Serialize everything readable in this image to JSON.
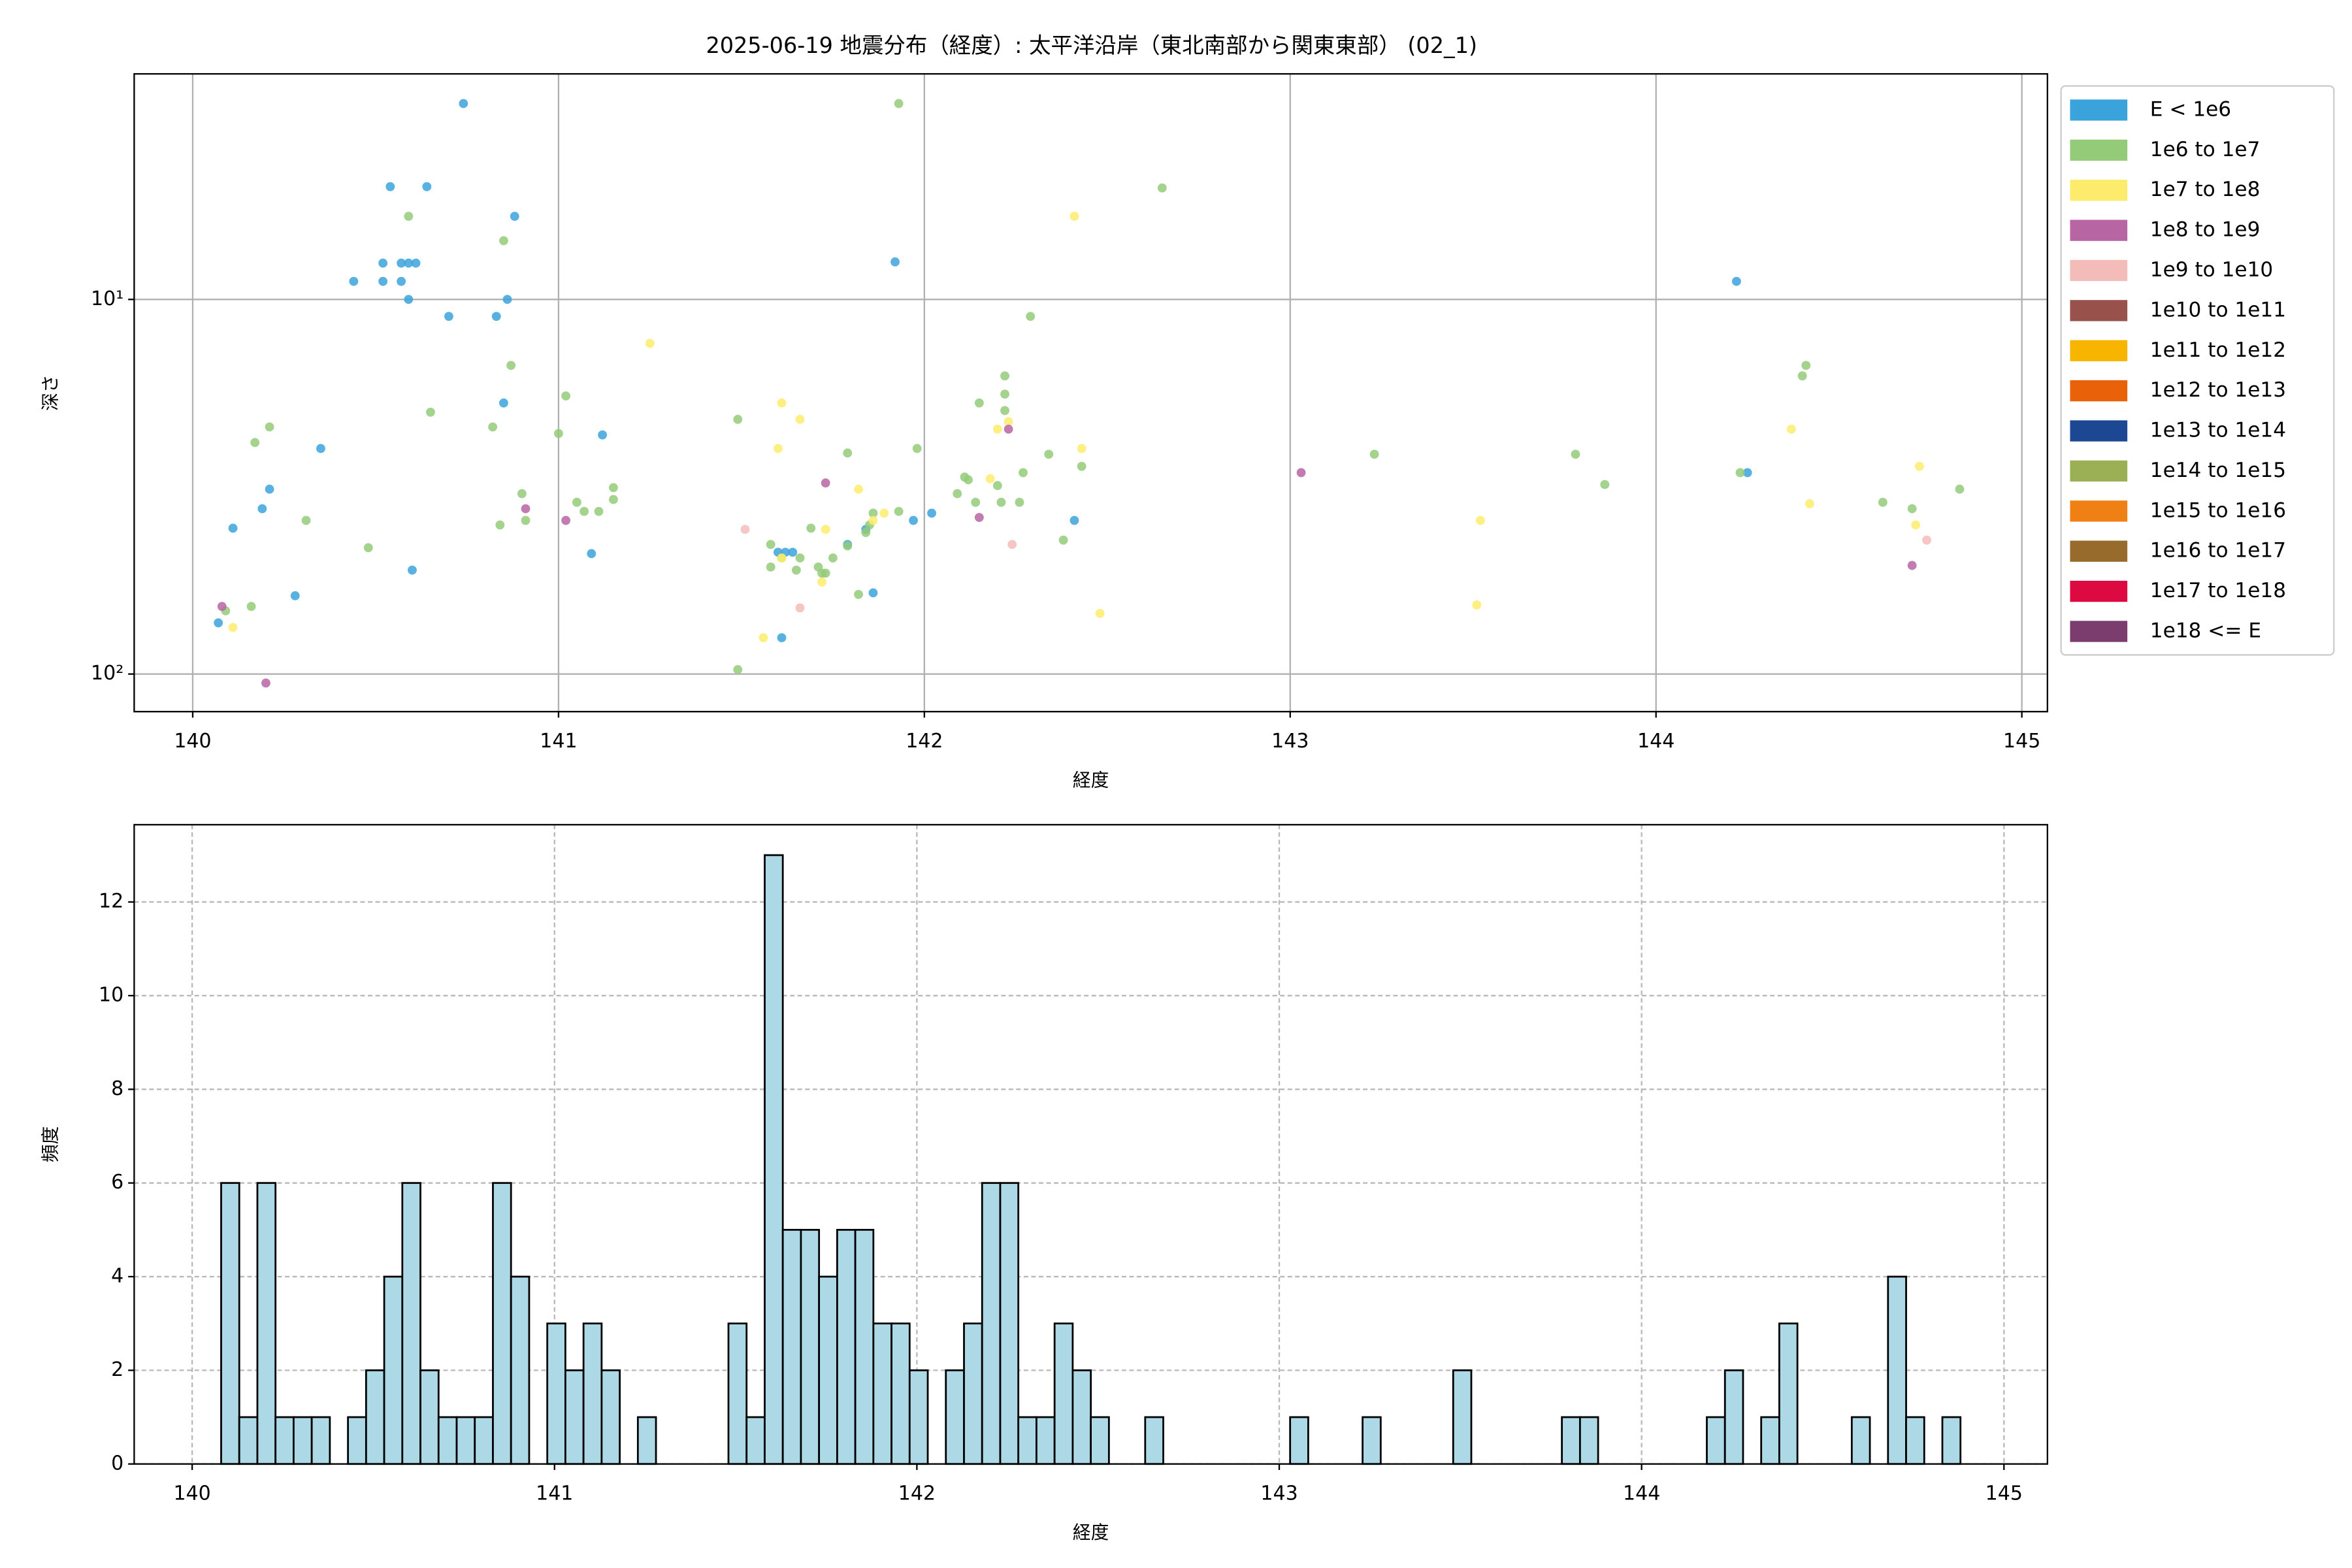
{
  "chart_data": [
    {
      "type": "scatter",
      "title": "2025-06-19 地震分布（経度）: 太平洋沿岸（東北南部から関東東部） (02_1)",
      "x_label": "経度",
      "y_label": "深さ",
      "xlim": [
        139.84,
        145.07
      ],
      "ylim": [
        126,
        2.5
      ],
      "yscale": "log",
      "xticks": [
        140,
        141,
        142,
        143,
        144,
        145
      ],
      "yticks": [
        {
          "value": 10,
          "label": "10¹"
        },
        {
          "value": 100,
          "label": "10²"
        }
      ],
      "grid": true,
      "grid_style": "solid",
      "legend": "outside-right",
      "series": [
        {
          "name": "E < 1e6",
          "color": "#3ba3dc",
          "x": [
            140.07,
            140.11,
            140.19,
            140.21,
            140.28,
            140.35,
            140.44,
            140.52,
            140.54,
            140.57,
            140.52,
            140.57,
            140.59,
            140.61,
            140.59,
            140.6,
            140.64,
            140.7,
            140.74,
            140.83,
            140.85,
            140.86,
            140.88,
            141.09,
            141.12,
            141.61,
            141.6,
            141.62,
            141.64,
            141.79,
            141.84,
            141.86,
            141.92,
            141.97,
            142.02,
            142.41,
            144.22,
            144.25
          ],
          "values": [
            73,
            40.8,
            36.2,
            32.1,
            61.8,
            25,
            8.95,
            8.95,
            5,
            8.95,
            8,
            8,
            8,
            8,
            10,
            52.8,
            5,
            11.1,
            3,
            11.1,
            18.9,
            10,
            6,
            47.7,
            23,
            80,
            47.3,
            47.3,
            47.3,
            45.1,
            41.1,
            60.7,
            7.94,
            38.9,
            37.2,
            38.9,
            8.95,
            29
          ]
        },
        {
          "name": "1e6 to 1e7",
          "color": "#93cb78",
          "x": [
            140.09,
            140.16,
            140.17,
            140.21,
            140.31,
            140.48,
            140.59,
            140.65,
            140.82,
            140.85,
            140.84,
            140.87,
            140.9,
            140.91,
            141.0,
            141.02,
            141.05,
            141.07,
            141.11,
            141.15,
            141.15,
            141.49,
            141.49,
            141.58,
            141.58,
            141.61,
            141.65,
            141.66,
            141.69,
            141.72,
            141.71,
            141.73,
            141.75,
            141.79,
            141.79,
            141.82,
            141.84,
            141.85,
            141.86,
            141.93,
            141.93,
            141.98,
            142.09,
            142.11,
            142.12,
            142.14,
            142.15,
            142.2,
            142.21,
            142.22,
            142.22,
            142.22,
            142.26,
            142.27,
            142.29,
            142.34,
            142.38,
            142.43,
            142.65,
            143.23,
            143.78,
            143.86,
            144.23,
            144.4,
            144.41,
            144.62,
            144.7,
            144.83
          ],
          "values": [
            67.8,
            66,
            24.1,
            21.9,
            38.9,
            46,
            6,
            20,
            21.9,
            6.97,
            40,
            15,
            33,
            38.9,
            22.8,
            18.1,
            34.8,
            36.8,
            36.8,
            34.2,
            31.8,
            20.9,
            97.3,
            45.1,
            51.8,
            49,
            52.8,
            49,
            40.8,
            53.8,
            51.8,
            53.8,
            49,
            25.7,
            45.5,
            61.3,
            41.9,
            40,
            37.2,
            3,
            36.8,
            25,
            33,
            29.8,
            30.3,
            34.8,
            18.9,
            31.4,
            34.8,
            19.8,
            17.9,
            16,
            34.8,
            29,
            11.1,
            25.9,
            43.9,
            27.9,
            5.04,
            25.9,
            25.9,
            31.2,
            29,
            16,
            15,
            34.8,
            36.2,
            32.1
          ]
        },
        {
          "name": "1e7 to 1e8",
          "color": "#fdec6b",
          "x": [
            140.11,
            141.25,
            141.56,
            141.6,
            141.61,
            141.66,
            141.61,
            141.72,
            141.73,
            141.82,
            141.86,
            141.89,
            142.18,
            142.2,
            142.23,
            142.41,
            142.43,
            142.48,
            143.51,
            143.52,
            144.37,
            144.42,
            144.71,
            144.72
          ],
          "values": [
            75.1,
            13.1,
            80,
            25,
            18.9,
            20.9,
            49,
            56.8,
            41.1,
            32.1,
            38.9,
            37.2,
            30.1,
            22.2,
            21.2,
            6,
            25,
            68.9,
            65.4,
            38.9,
            22.2,
            35.1,
            40,
            27.9
          ]
        },
        {
          "name": "1e8 to 1e9",
          "color": "#b865a3",
          "x": [
            140.08,
            140.2,
            140.91,
            141.02,
            141.73,
            142.15,
            142.23,
            143.03,
            144.7
          ],
          "values": [
            66,
            105.7,
            36.2,
            38.9,
            30.9,
            38.2,
            22.2,
            29,
            51.3
          ]
        },
        {
          "name": "1e9 to 1e10",
          "color": "#f3bcb8",
          "x": [
            141.51,
            141.66,
            142.24,
            144.74
          ],
          "values": [
            41.1,
            66.6,
            45.1,
            43.9
          ]
        },
        {
          "name": "1e10 to 1e11",
          "color": "#98514b",
          "x": [],
          "values": []
        },
        {
          "name": "1e11 to 1e12",
          "color": "#f7b500",
          "x": [],
          "values": []
        },
        {
          "name": "1e12 to 1e13",
          "color": "#e9620a",
          "x": [],
          "values": []
        },
        {
          "name": "1e13 to 1e14",
          "color": "#1c4793",
          "x": [],
          "values": []
        },
        {
          "name": "1e14 to 1e15",
          "color": "#9bb055",
          "x": [],
          "values": []
        },
        {
          "name": "1e15 to 1e16",
          "color": "#f18014",
          "x": [],
          "values": []
        },
        {
          "name": "1e16 to 1e17",
          "color": "#966b2c",
          "x": [],
          "values": []
        },
        {
          "name": "1e17 to 1e18",
          "color": "#dc0a40",
          "x": [],
          "values": []
        },
        {
          "name": "1e18 <= E",
          "color": "#7a3d6e",
          "x": [],
          "values": []
        }
      ]
    },
    {
      "type": "histogram",
      "x_label": "経度",
      "y_label": "頻度",
      "xlim": [
        139.84,
        145.12
      ],
      "ylim": [
        0,
        13.65
      ],
      "xticks": [
        140,
        141,
        142,
        143,
        144,
        145
      ],
      "yticks": [
        0,
        2,
        4,
        6,
        8,
        10,
        12
      ],
      "grid": true,
      "grid_style": "dashed",
      "color": "#add8e6",
      "edgecolor": "#000000",
      "bins": [
        140.08,
        140.13,
        140.18,
        140.23,
        140.28,
        140.33,
        140.38,
        140.43,
        140.48,
        140.53,
        140.58,
        140.63,
        140.68,
        140.73,
        140.78,
        140.83,
        140.88,
        140.93,
        140.98,
        141.03,
        141.08,
        141.13,
        141.18,
        141.23,
        141.28,
        141.33,
        141.38,
        141.43,
        141.48,
        141.53,
        141.58,
        141.63,
        141.68,
        141.73,
        141.78,
        141.83,
        141.88,
        141.93,
        141.98,
        142.03,
        142.08,
        142.13,
        142.18,
        142.23,
        142.28,
        142.33,
        142.38,
        142.43,
        142.48,
        142.53,
        142.58,
        142.63,
        142.68,
        142.73,
        142.78,
        142.83,
        142.88,
        142.93,
        142.98,
        143.03,
        143.08,
        143.13,
        143.18,
        143.23,
        143.28,
        143.33,
        143.38,
        143.43,
        143.48,
        143.53,
        143.58,
        143.63,
        143.68,
        143.73,
        143.78,
        143.83,
        143.88,
        143.93,
        143.98,
        144.03,
        144.08,
        144.13,
        144.18,
        144.23,
        144.28,
        144.33,
        144.38,
        144.43,
        144.48,
        144.53,
        144.58,
        144.63,
        144.68,
        144.73,
        144.78,
        144.83,
        144.88
      ],
      "values": [
        6,
        1,
        6,
        1,
        1,
        1,
        0,
        1,
        2,
        4,
        6,
        2,
        1,
        1,
        1,
        6,
        4,
        0,
        3,
        2,
        3,
        2,
        0,
        1,
        0,
        0,
        0,
        0,
        3,
        1,
        13,
        5,
        5,
        4,
        5,
        5,
        3,
        3,
        2,
        0,
        2,
        3,
        6,
        6,
        1,
        1,
        3,
        2,
        1,
        0,
        0,
        1,
        0,
        0,
        0,
        0,
        0,
        0,
        0,
        1,
        0,
        0,
        0,
        1,
        0,
        0,
        0,
        0,
        2,
        0,
        0,
        0,
        0,
        0,
        1,
        1,
        0,
        0,
        0,
        0,
        0,
        0,
        1,
        2,
        0,
        1,
        3,
        0,
        0,
        0,
        1,
        0,
        4,
        1,
        0,
        1
      ]
    }
  ]
}
